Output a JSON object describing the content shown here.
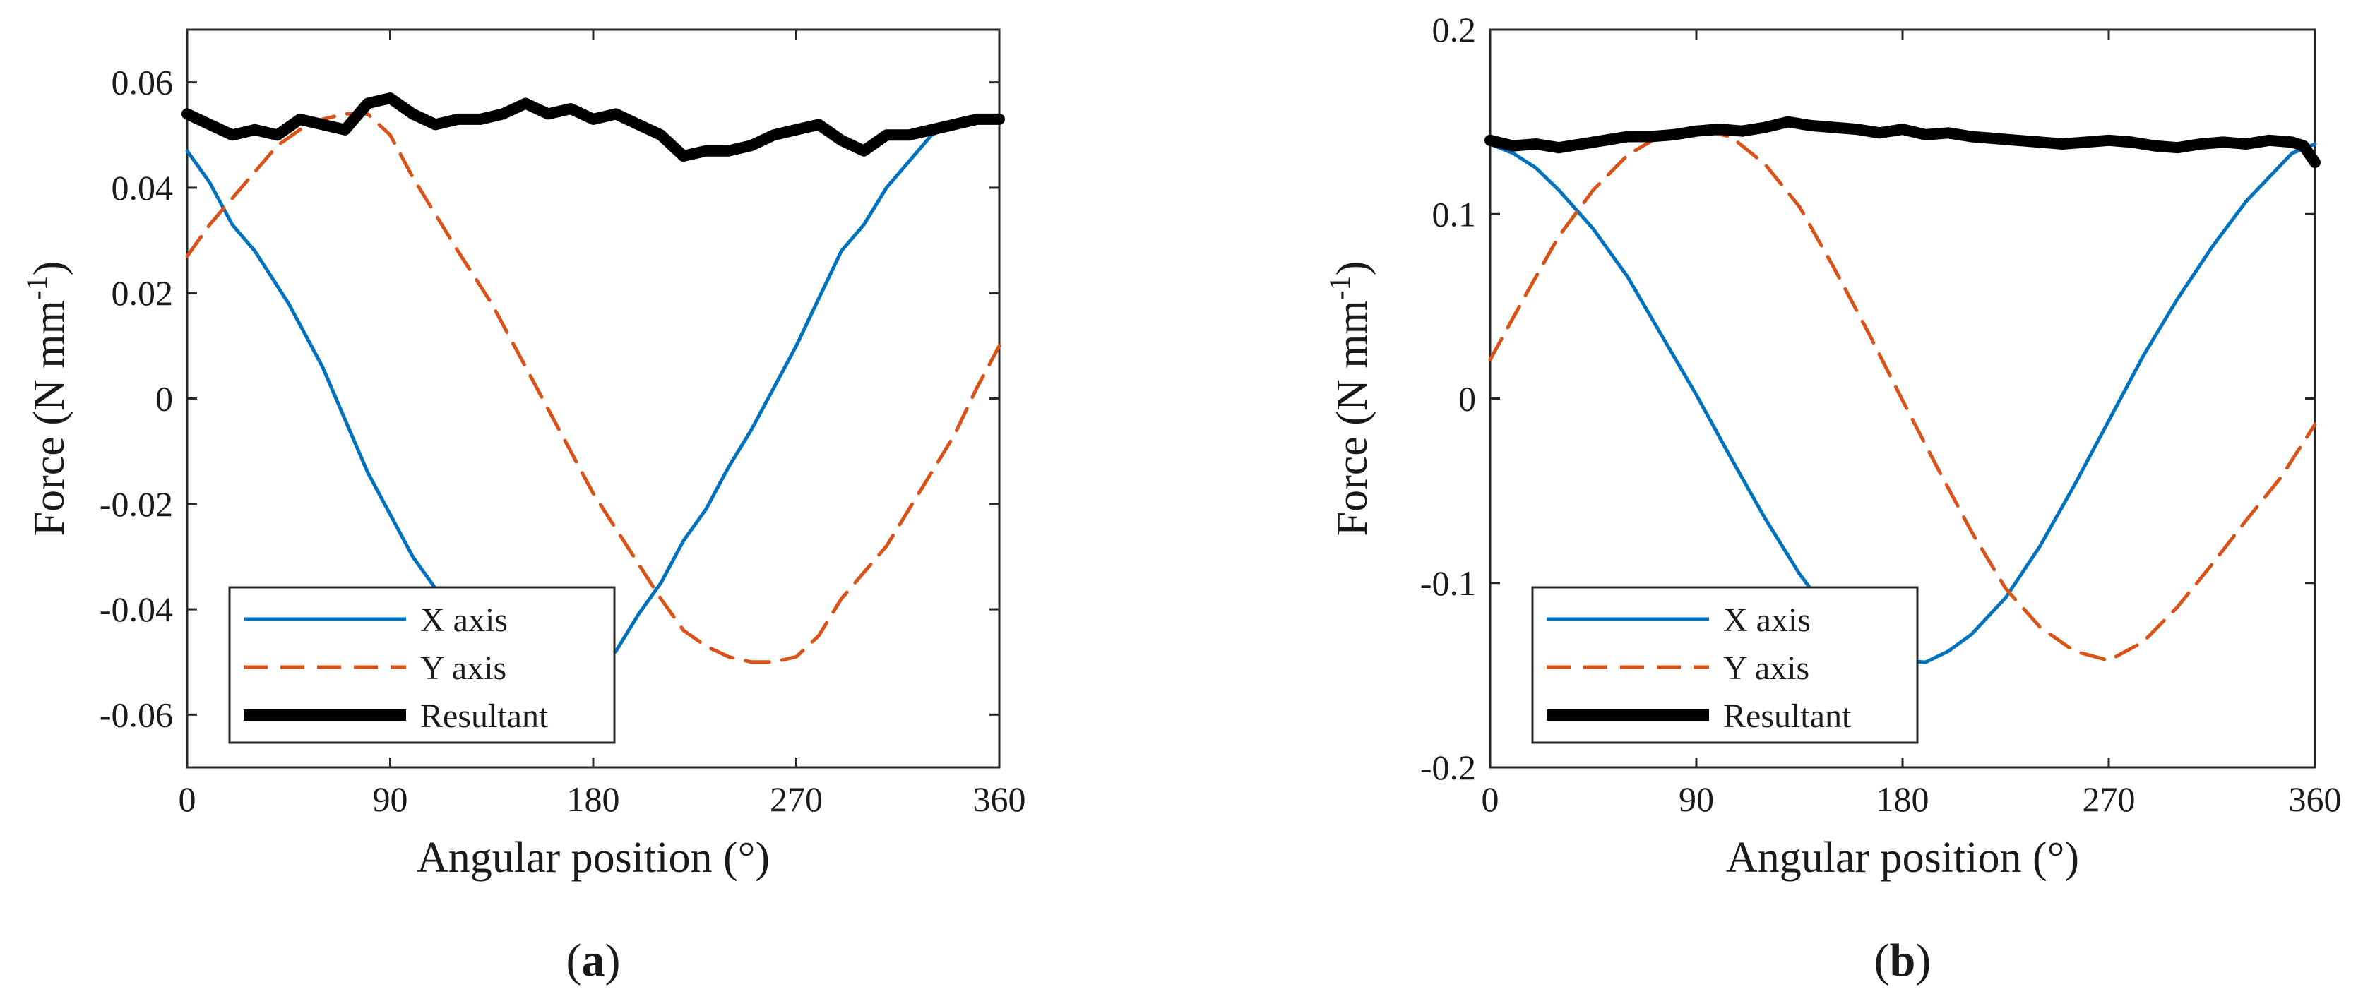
{
  "chart_data": [
    {
      "type": "line",
      "panel_label": "a",
      "xlabel": "Angular position (°)",
      "ylabel_prefix": "Force (N mm",
      "ylabel_superscript": "-1",
      "ylabel_suffix": ")",
      "xlim": [
        0,
        360
      ],
      "ylim": [
        -0.07,
        0.07
      ],
      "xticks": [
        0,
        90,
        180,
        270,
        360
      ],
      "yticks": [
        -0.06,
        -0.04,
        -0.02,
        0,
        0.02,
        0.04,
        0.06
      ],
      "ytick_labels": [
        "-0.06",
        "-0.04",
        "-0.02",
        "0",
        "0.02",
        "0.04",
        "0.06"
      ],
      "grid": false,
      "legend_position": "bottom-left",
      "series": [
        {
          "name": "X axis",
          "color": "#0072BD",
          "style": "solid",
          "x": [
            0,
            10,
            20,
            30,
            45,
            60,
            70,
            80,
            90,
            100,
            110,
            120,
            135,
            150,
            165,
            180,
            190,
            200,
            210,
            220,
            230,
            240,
            250,
            260,
            270,
            280,
            290,
            300,
            310,
            320,
            330,
            340,
            350,
            360
          ],
          "y": [
            0.047,
            0.041,
            0.033,
            0.028,
            0.018,
            0.006,
            -0.004,
            -0.014,
            -0.022,
            -0.03,
            -0.036,
            -0.041,
            -0.046,
            -0.049,
            -0.05,
            -0.051,
            -0.048,
            -0.041,
            -0.035,
            -0.027,
            -0.021,
            -0.013,
            -0.006,
            0.002,
            0.01,
            0.019,
            0.028,
            0.033,
            0.04,
            0.045,
            0.05,
            0.052,
            0.053,
            0.053
          ]
        },
        {
          "name": "Y axis",
          "color": "#D95319",
          "style": "dashed",
          "x": [
            0,
            10,
            20,
            30,
            40,
            50,
            60,
            70,
            80,
            90,
            100,
            110,
            120,
            135,
            150,
            165,
            180,
            195,
            210,
            220,
            230,
            240,
            250,
            260,
            270,
            280,
            290,
            300,
            310,
            320,
            330,
            340,
            350,
            360
          ],
          "y": [
            0.027,
            0.033,
            0.038,
            0.043,
            0.048,
            0.051,
            0.053,
            0.054,
            0.054,
            0.05,
            0.042,
            0.035,
            0.028,
            0.018,
            0.006,
            -0.006,
            -0.018,
            -0.028,
            -0.038,
            -0.044,
            -0.047,
            -0.049,
            -0.05,
            -0.05,
            -0.049,
            -0.045,
            -0.038,
            -0.033,
            -0.028,
            -0.021,
            -0.014,
            -0.007,
            0.002,
            0.01
          ]
        },
        {
          "name": "Resultant",
          "color": "#000000",
          "style": "bold",
          "x": [
            0,
            10,
            20,
            30,
            40,
            50,
            60,
            70,
            80,
            90,
            100,
            110,
            120,
            130,
            140,
            150,
            160,
            170,
            180,
            190,
            200,
            210,
            220,
            230,
            240,
            250,
            260,
            270,
            280,
            290,
            300,
            310,
            320,
            330,
            340,
            350,
            360
          ],
          "y": [
            0.054,
            0.052,
            0.05,
            0.051,
            0.05,
            0.053,
            0.052,
            0.051,
            0.056,
            0.057,
            0.054,
            0.052,
            0.053,
            0.053,
            0.054,
            0.056,
            0.054,
            0.055,
            0.053,
            0.054,
            0.052,
            0.05,
            0.046,
            0.047,
            0.047,
            0.048,
            0.05,
            0.051,
            0.052,
            0.049,
            0.047,
            0.05,
            0.05,
            0.051,
            0.052,
            0.053,
            0.053
          ]
        }
      ]
    },
    {
      "type": "line",
      "panel_label": "b",
      "xlabel": "Angular position (°)",
      "ylabel_prefix": "Force (N mm",
      "ylabel_superscript": "-1",
      "ylabel_suffix": ")",
      "xlim": [
        0,
        360
      ],
      "ylim": [
        -0.2,
        0.2
      ],
      "xticks": [
        0,
        90,
        180,
        270,
        360
      ],
      "yticks": [
        -0.2,
        -0.1,
        0,
        0.1,
        0.2
      ],
      "ytick_labels": [
        "-0.2",
        "-0.1",
        "0",
        "0.1",
        "0.2"
      ],
      "grid": false,
      "legend_position": "bottom-left",
      "series": [
        {
          "name": "X axis",
          "color": "#0072BD",
          "style": "solid",
          "x": [
            0,
            10,
            20,
            30,
            45,
            60,
            75,
            90,
            105,
            120,
            135,
            150,
            165,
            180,
            190,
            200,
            210,
            225,
            240,
            255,
            270,
            285,
            300,
            315,
            330,
            340,
            350,
            360
          ],
          "y": [
            0.138,
            0.133,
            0.125,
            0.113,
            0.092,
            0.066,
            0.034,
            0.002,
            -0.032,
            -0.065,
            -0.095,
            -0.12,
            -0.135,
            -0.142,
            -0.143,
            -0.137,
            -0.128,
            -0.108,
            -0.08,
            -0.047,
            -0.012,
            0.023,
            0.054,
            0.082,
            0.107,
            0.12,
            0.133,
            0.138
          ]
        },
        {
          "name": "Y axis",
          "color": "#D95319",
          "style": "dashed",
          "x": [
            0,
            15,
            30,
            45,
            60,
            75,
            90,
            105,
            120,
            135,
            150,
            165,
            180,
            195,
            210,
            225,
            240,
            255,
            270,
            285,
            300,
            315,
            330,
            345,
            360
          ],
          "y": [
            0.021,
            0.055,
            0.088,
            0.113,
            0.132,
            0.143,
            0.146,
            0.142,
            0.127,
            0.104,
            0.071,
            0.036,
            -0.001,
            -0.037,
            -0.072,
            -0.103,
            -0.124,
            -0.137,
            -0.142,
            -0.132,
            -0.113,
            -0.09,
            -0.066,
            -0.043,
            -0.014
          ]
        },
        {
          "name": "Resultant",
          "color": "#000000",
          "style": "bold",
          "x": [
            0,
            10,
            20,
            30,
            40,
            50,
            60,
            70,
            80,
            90,
            100,
            110,
            120,
            130,
            140,
            150,
            160,
            170,
            180,
            190,
            200,
            210,
            220,
            230,
            240,
            250,
            260,
            270,
            280,
            290,
            300,
            310,
            320,
            330,
            340,
            350,
            355,
            360
          ],
          "y": [
            0.14,
            0.137,
            0.138,
            0.136,
            0.138,
            0.14,
            0.142,
            0.142,
            0.143,
            0.145,
            0.146,
            0.145,
            0.147,
            0.15,
            0.148,
            0.147,
            0.146,
            0.144,
            0.146,
            0.143,
            0.144,
            0.142,
            0.141,
            0.14,
            0.139,
            0.138,
            0.139,
            0.14,
            0.139,
            0.137,
            0.136,
            0.138,
            0.139,
            0.138,
            0.14,
            0.139,
            0.137,
            0.128
          ]
        }
      ]
    }
  ]
}
